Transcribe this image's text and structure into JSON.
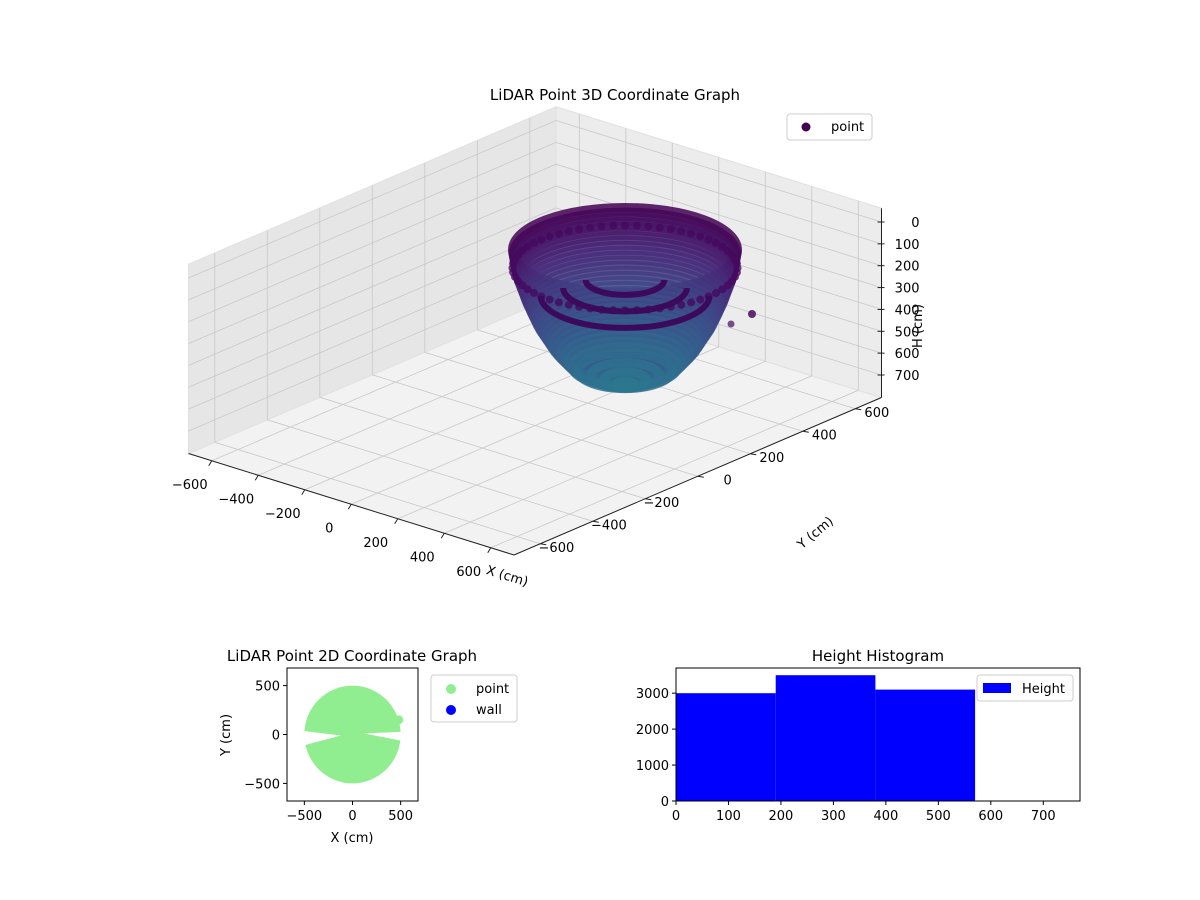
{
  "chart_data": [
    {
      "id": "lidar-3d",
      "type": "scatter",
      "title": "LiDAR Point 3D Coordinate Graph",
      "xlabel": "X (cm)",
      "ylabel": "Y (cm)",
      "zlabel": "H (cm)",
      "xlim": [
        -700,
        700
      ],
      "ylim": [
        -700,
        700
      ],
      "zlim": [
        0,
        750
      ],
      "z_inverted": true,
      "x_ticks": [
        -600,
        -400,
        -200,
        0,
        200,
        400,
        600
      ],
      "y_ticks": [
        -600,
        -400,
        -200,
        0,
        200,
        400,
        600
      ],
      "z_ticks": [
        0,
        100,
        200,
        300,
        400,
        500,
        600,
        700
      ],
      "grid": true,
      "legend": {
        "position": "top-right",
        "entries": [
          {
            "label": "point",
            "color": "#440154"
          }
        ]
      },
      "colormap": "viridis",
      "surface": {
        "shape": "hemispherical bowl with radial steps",
        "radius_cm": 500,
        "rim_height_cm": 0,
        "bottom_height_cm": 570,
        "rings": [
          {
            "radius": 500,
            "height": 0
          },
          {
            "radius": 480,
            "height": 100
          },
          {
            "radius": 440,
            "height": 200
          },
          {
            "radius": 390,
            "height": 300
          },
          {
            "radius": 320,
            "height": 400
          },
          {
            "radius": 220,
            "height": 500
          },
          {
            "radius": 0,
            "height": 570
          }
        ]
      },
      "outliers": [
        {
          "x": 480,
          "y": 150,
          "h": 300
        }
      ]
    },
    {
      "id": "lidar-2d",
      "type": "scatter",
      "title": "LiDAR Point 2D Coordinate Graph",
      "xlabel": "X (cm)",
      "ylabel": "Y (cm)",
      "xlim": [
        -680,
        680
      ],
      "ylim": [
        -680,
        680
      ],
      "x_ticks": [
        -500,
        0,
        500
      ],
      "y_ticks": [
        -500,
        0,
        500
      ],
      "legend": {
        "position": "outside-right",
        "entries": [
          {
            "label": "point",
            "color": "#90ee90"
          },
          {
            "label": "wall",
            "color": "#0000ff"
          }
        ]
      },
      "point_cloud": {
        "shape": "disk",
        "radius_cm": 500,
        "color": "#90ee90"
      },
      "outliers": [
        {
          "x": 480,
          "y": 150
        }
      ]
    },
    {
      "id": "height-histogram",
      "type": "bar",
      "title": "Height Histogram",
      "xlabel": "",
      "ylabel": "",
      "xlim": [
        0,
        770
      ],
      "ylim": [
        0,
        3700
      ],
      "x_ticks": [
        0,
        100,
        200,
        300,
        400,
        500,
        600,
        700
      ],
      "y_ticks": [
        0,
        1000,
        2000,
        3000
      ],
      "bins": [
        [
          0,
          190
        ],
        [
          190,
          380
        ],
        [
          380,
          570
        ]
      ],
      "values": [
        3000,
        3500,
        3100
      ],
      "color": "#0000ff",
      "legend": {
        "position": "top-right",
        "entries": [
          {
            "label": "Height",
            "color": "#0000ff"
          }
        ]
      }
    }
  ]
}
